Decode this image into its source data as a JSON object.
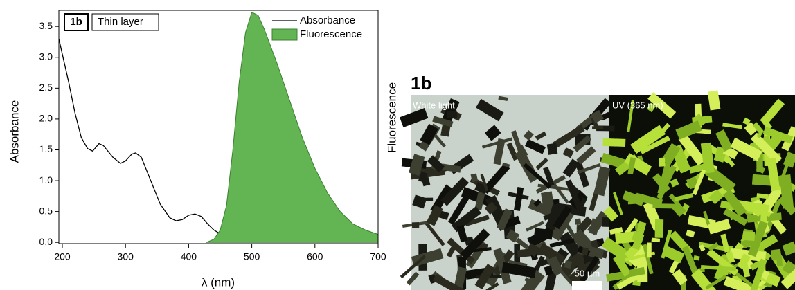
{
  "chart_data": {
    "type": "line",
    "x_label": "λ (nm)",
    "y_label": "Absorbance",
    "y2_label": "Fluorescence",
    "annotations": [
      "1b",
      "Thin layer"
    ],
    "legend": "top-right",
    "xlim": [
      194.5,
      700
    ],
    "ylim": [
      -0.02,
      3.76
    ],
    "xticks": [
      200,
      300,
      400,
      500,
      600,
      700
    ],
    "yticks": [
      {
        "value": 0,
        "label": "0.0"
      },
      0.5,
      {
        "value": 1,
        "label": "1.0"
      },
      1.5,
      {
        "value": 2,
        "label": "2.0"
      },
      2.5,
      {
        "value": 3,
        "label": "3.0"
      },
      3.5
    ],
    "series": [
      {
        "name": "Absorbance",
        "color": "#000000",
        "style": "line",
        "x": [
          194.5,
          200,
          210,
          220,
          230,
          240,
          248,
          258,
          265,
          280,
          292,
          300,
          310,
          316,
          325,
          340,
          355,
          370,
          380,
          390,
          400,
          410,
          420,
          430,
          440,
          450,
          470,
          500,
          550,
          600,
          700
        ],
        "values": [
          3.3,
          3.05,
          2.6,
          2.1,
          1.7,
          1.52,
          1.48,
          1.6,
          1.57,
          1.38,
          1.28,
          1.32,
          1.43,
          1.45,
          1.38,
          1.0,
          0.62,
          0.4,
          0.35,
          0.37,
          0.44,
          0.46,
          0.42,
          0.3,
          0.2,
          0.14,
          0.1,
          0.08,
          0.06,
          0.05,
          0.04
        ]
      },
      {
        "name": "Fluorescence",
        "color": "#62b552",
        "style": "area",
        "x": [
          428,
          440,
          450,
          460,
          470,
          480,
          490,
          500,
          510,
          520,
          540,
          560,
          580,
          600,
          620,
          640,
          660,
          680,
          700
        ],
        "values": [
          0,
          0.05,
          0.2,
          0.6,
          1.5,
          2.6,
          3.4,
          3.73,
          3.68,
          3.45,
          2.9,
          2.3,
          1.7,
          1.2,
          0.8,
          0.5,
          0.3,
          0.2,
          0.13
        ]
      }
    ]
  },
  "image": {
    "label": "1b",
    "panels": [
      "White light",
      "UV (365 nm)"
    ],
    "scale_bar": "50 µm"
  }
}
